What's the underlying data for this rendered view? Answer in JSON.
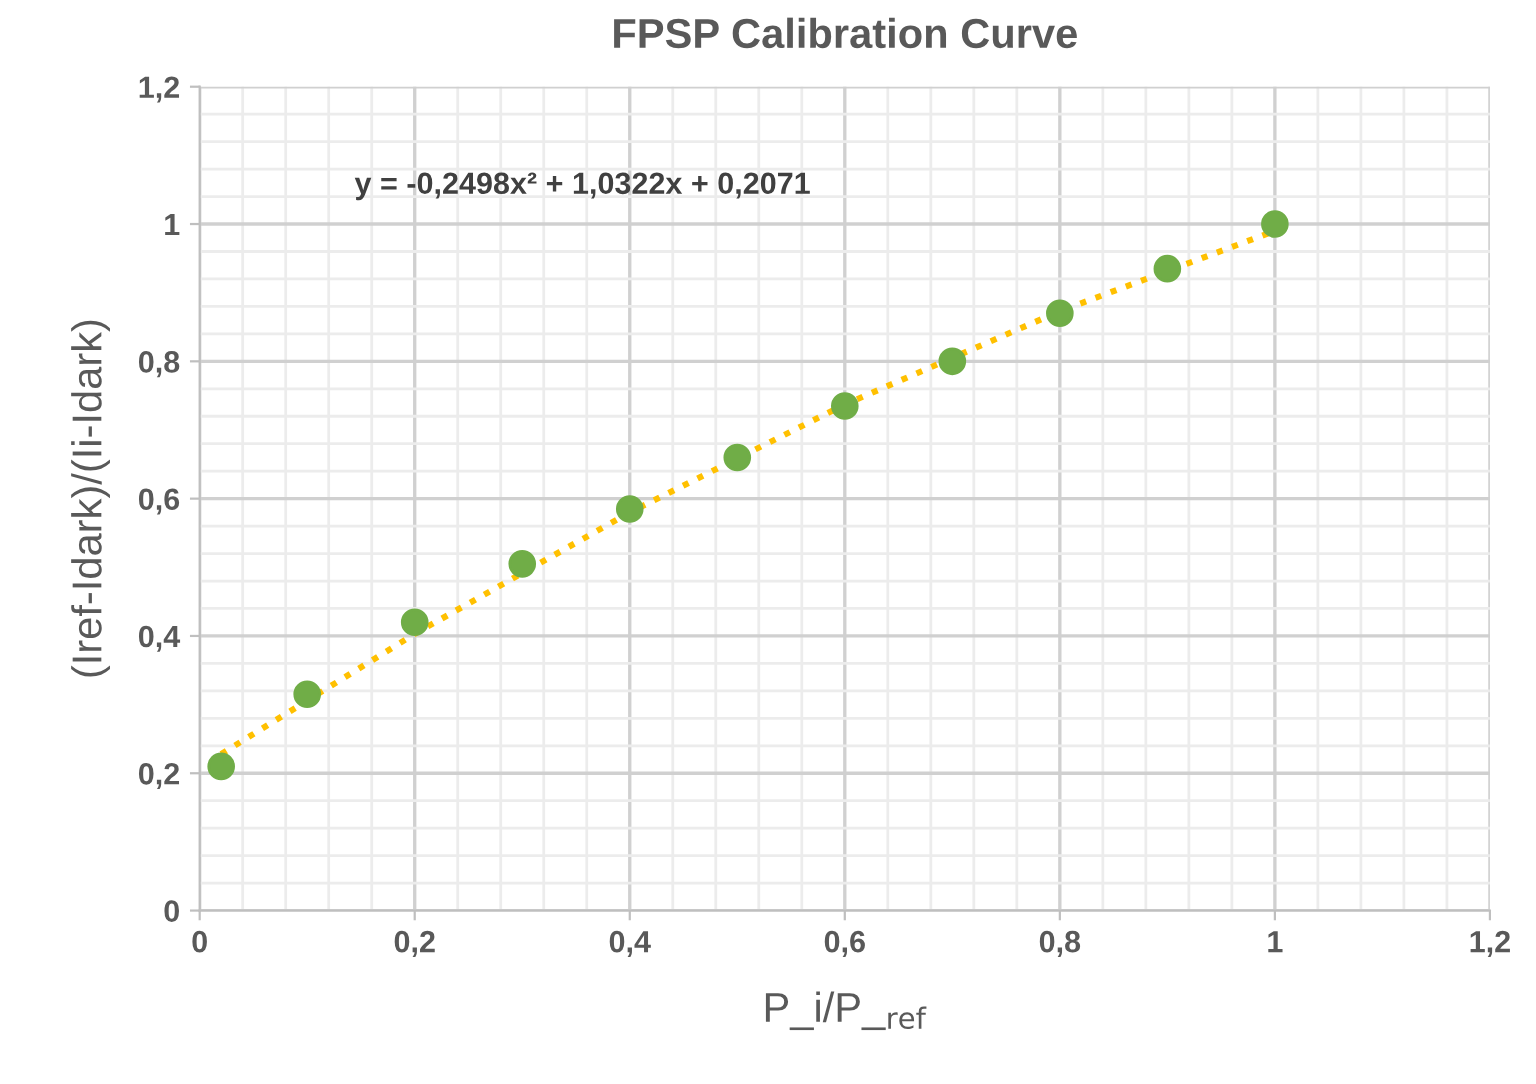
{
  "chart_data": {
    "type": "scatter",
    "title": "FPSP Calibration Curve",
    "xlabel": "P_i/P_$_{ref}$",
    "ylabel": "(Iref-Idark)/(Ii-Idark)",
    "annotations": [
      "y = -0,2498x² + 1,0322x + 0,2071"
    ],
    "series": [
      {
        "color": "#70ad47",
        "marker": "circle",
        "x": [
          0.02,
          0.1,
          0.2,
          0.3,
          0.4,
          0.5,
          0.6,
          0.7,
          0.8,
          0.9,
          1.0
        ],
        "values": [
          0.21,
          0.315,
          0.42,
          0.505,
          0.585,
          0.66,
          0.735,
          0.8,
          0.87,
          0.935,
          1.0
        ]
      },
      {
        "type": "line",
        "color": "#ffc000",
        "line_style": "dotted",
        "marker": "none",
        "x": [
          0.02,
          0.2,
          0.4,
          0.6,
          0.8,
          1.0
        ],
        "values": [
          0.228,
          0.403,
          0.58,
          0.737,
          0.873,
          0.99
        ]
      }
    ],
    "xlim": [
      0,
      1.2
    ],
    "ylim": [
      0,
      1.2
    ],
    "xticks": [
      0,
      {
        "value": 0.2,
        "label": "0,2"
      },
      {
        "value": 0.4,
        "label": "0,4"
      },
      {
        "value": 0.6,
        "label": "0,6"
      },
      {
        "value": 0.8,
        "label": "0,8"
      },
      1,
      {
        "value": 1.2,
        "label": "1,2"
      }
    ],
    "yticks": [
      0,
      {
        "value": 0.2,
        "label": "0,2"
      },
      {
        "value": 0.4,
        "label": "0,4"
      },
      {
        "value": 0.6,
        "label": "0,6"
      },
      {
        "value": 0.8,
        "label": "0,8"
      },
      1,
      {
        "value": 1.2,
        "label": "1,2"
      }
    ],
    "grid": true
  }
}
